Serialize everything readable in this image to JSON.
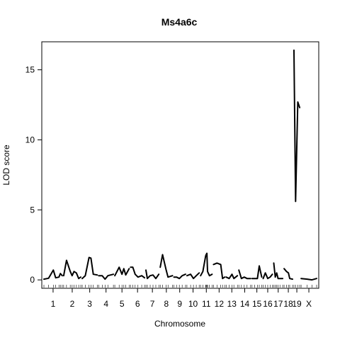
{
  "chart_data": {
    "type": "line",
    "title": "Ms4a6c",
    "xlabel": "Chromosome",
    "ylabel": "LOD score",
    "ylim": [
      -0.6,
      17.0
    ],
    "y_ticks": [
      0,
      5,
      10,
      15
    ],
    "grid": false,
    "legend": "none",
    "series_color": "#000000",
    "chromosomes": [
      {
        "label": "1",
        "start": 0,
        "end": 195,
        "lod": [
          [
            0,
            0.05
          ],
          [
            50,
            0.12
          ],
          [
            100,
            0.7
          ],
          [
            125,
            0.15
          ],
          [
            160,
            0.2
          ],
          [
            175,
            0.45
          ],
          [
            195,
            0.3
          ]
        ]
      },
      {
        "label": "2",
        "start": 210,
        "end": 392,
        "lod": [
          [
            210,
            0.3
          ],
          [
            240,
            1.4
          ],
          [
            280,
            0.6
          ],
          [
            300,
            0.3
          ],
          [
            320,
            0.6
          ],
          [
            345,
            0.5
          ],
          [
            370,
            0.1
          ],
          [
            392,
            0.2
          ]
        ]
      },
      {
        "label": "3",
        "start": 407,
        "end": 567,
        "lod": [
          [
            407,
            0.1
          ],
          [
            440,
            0.3
          ],
          [
            480,
            1.6
          ],
          [
            500,
            1.55
          ],
          [
            525,
            0.4
          ],
          [
            567,
            0.35
          ]
        ]
      },
      {
        "label": "4",
        "start": 582,
        "end": 739,
        "lod": [
          [
            582,
            0.3
          ],
          [
            620,
            0.3
          ],
          [
            650,
            0.05
          ],
          [
            680,
            0.3
          ],
          [
            739,
            0.4
          ]
        ]
      },
      {
        "label": "5",
        "start": 754,
        "end": 906,
        "lod": [
          [
            754,
            0.3
          ],
          [
            800,
            0.9
          ],
          [
            830,
            0.4
          ],
          [
            850,
            0.8
          ],
          [
            870,
            0.35
          ],
          [
            906,
            0.8
          ]
        ]
      },
      {
        "label": "6",
        "start": 921,
        "end": 1070,
        "lod": [
          [
            921,
            0.9
          ],
          [
            945,
            0.9
          ],
          [
            970,
            0.4
          ],
          [
            1000,
            0.2
          ],
          [
            1040,
            0.3
          ],
          [
            1070,
            0.15
          ]
        ]
      },
      {
        "label": "7",
        "start": 1085,
        "end": 1222,
        "lod": [
          [
            1085,
            0.7
          ],
          [
            1100,
            0.1
          ],
          [
            1130,
            0.3
          ],
          [
            1160,
            0.35
          ],
          [
            1190,
            0.1
          ],
          [
            1222,
            0.4
          ]
        ]
      },
      {
        "label": "8",
        "start": 1237,
        "end": 1367,
        "lod": [
          [
            1237,
            0.9
          ],
          [
            1262,
            1.8
          ],
          [
            1300,
            0.7
          ],
          [
            1320,
            0.2
          ],
          [
            1367,
            0.3
          ]
        ]
      },
      {
        "label": "9",
        "start": 1382,
        "end": 1506,
        "lod": [
          [
            1382,
            0.2
          ],
          [
            1410,
            0.2
          ],
          [
            1440,
            0.1
          ],
          [
            1470,
            0.3
          ],
          [
            1506,
            0.4
          ]
        ]
      },
      {
        "label": "10",
        "start": 1521,
        "end": 1651,
        "lod": [
          [
            1521,
            0.3
          ],
          [
            1560,
            0.4
          ],
          [
            1590,
            0.1
          ],
          [
            1620,
            0.3
          ],
          [
            1651,
            0.5
          ]
        ]
      },
      {
        "label": "11",
        "start": 1666,
        "end": 1788,
        "lod": [
          [
            1666,
            0.3
          ],
          [
            1690,
            0.6
          ],
          [
            1720,
            1.7
          ],
          [
            1725,
            1.8
          ],
          [
            1733,
            1.9
          ],
          [
            1740,
            0.6
          ],
          [
            1760,
            0.3
          ],
          [
            1788,
            0.4
          ]
        ]
      },
      {
        "label": "12",
        "start": 1803,
        "end": 1923,
        "lod": [
          [
            1803,
            1.1
          ],
          [
            1840,
            1.2
          ],
          [
            1880,
            1.1
          ],
          [
            1900,
            0.1
          ],
          [
            1923,
            0.2
          ]
        ]
      },
      {
        "label": "13",
        "start": 1938,
        "end": 2058,
        "lod": [
          [
            1938,
            0.2
          ],
          [
            1970,
            0.1
          ],
          [
            2000,
            0.4
          ],
          [
            2020,
            0.1
          ],
          [
            2058,
            0.3
          ]
        ]
      },
      {
        "label": "14",
        "start": 2073,
        "end": 2198,
        "lod": [
          [
            2073,
            0.7
          ],
          [
            2100,
            0.1
          ],
          [
            2130,
            0.2
          ],
          [
            2160,
            0.1
          ],
          [
            2198,
            0.1
          ]
        ]
      },
      {
        "label": "15",
        "start": 2213,
        "end": 2316,
        "lod": [
          [
            2213,
            0.1
          ],
          [
            2240,
            0.1
          ],
          [
            2270,
            0.1
          ],
          [
            2290,
            1.0
          ],
          [
            2316,
            0.2
          ]
        ]
      },
      {
        "label": "16",
        "start": 2331,
        "end": 2429,
        "lod": [
          [
            2331,
            0.1
          ],
          [
            2355,
            0.5
          ],
          [
            2380,
            0.1
          ],
          [
            2405,
            0.2
          ],
          [
            2429,
            0.4
          ]
        ]
      },
      {
        "label": "17",
        "start": 2444,
        "end": 2539,
        "lod": [
          [
            2444,
            1.2
          ],
          [
            2460,
            0.2
          ],
          [
            2475,
            0.5
          ],
          [
            2490,
            0.1
          ],
          [
            2510,
            0.1
          ],
          [
            2539,
            0.1
          ]
        ]
      },
      {
        "label": "18",
        "start": 2554,
        "end": 2644,
        "lod": [
          [
            2554,
            0.8
          ],
          [
            2580,
            0.6
          ],
          [
            2600,
            0.5
          ],
          [
            2614,
            0.1
          ],
          [
            2644,
            0.05
          ]
        ]
      },
      {
        "label": "19",
        "start": 2659,
        "end": 2720,
        "lod": [
          [
            2659,
            16.4
          ],
          [
            2676,
            5.6
          ],
          [
            2700,
            12.7
          ],
          [
            2720,
            12.3
          ]
        ]
      },
      {
        "label": "X",
        "start": 2735,
        "end": 2900,
        "lod": [
          [
            2735,
            0.1
          ],
          [
            2800,
            0.05
          ],
          [
            2850,
            0.0
          ],
          [
            2900,
            0.1
          ]
        ]
      }
    ]
  }
}
